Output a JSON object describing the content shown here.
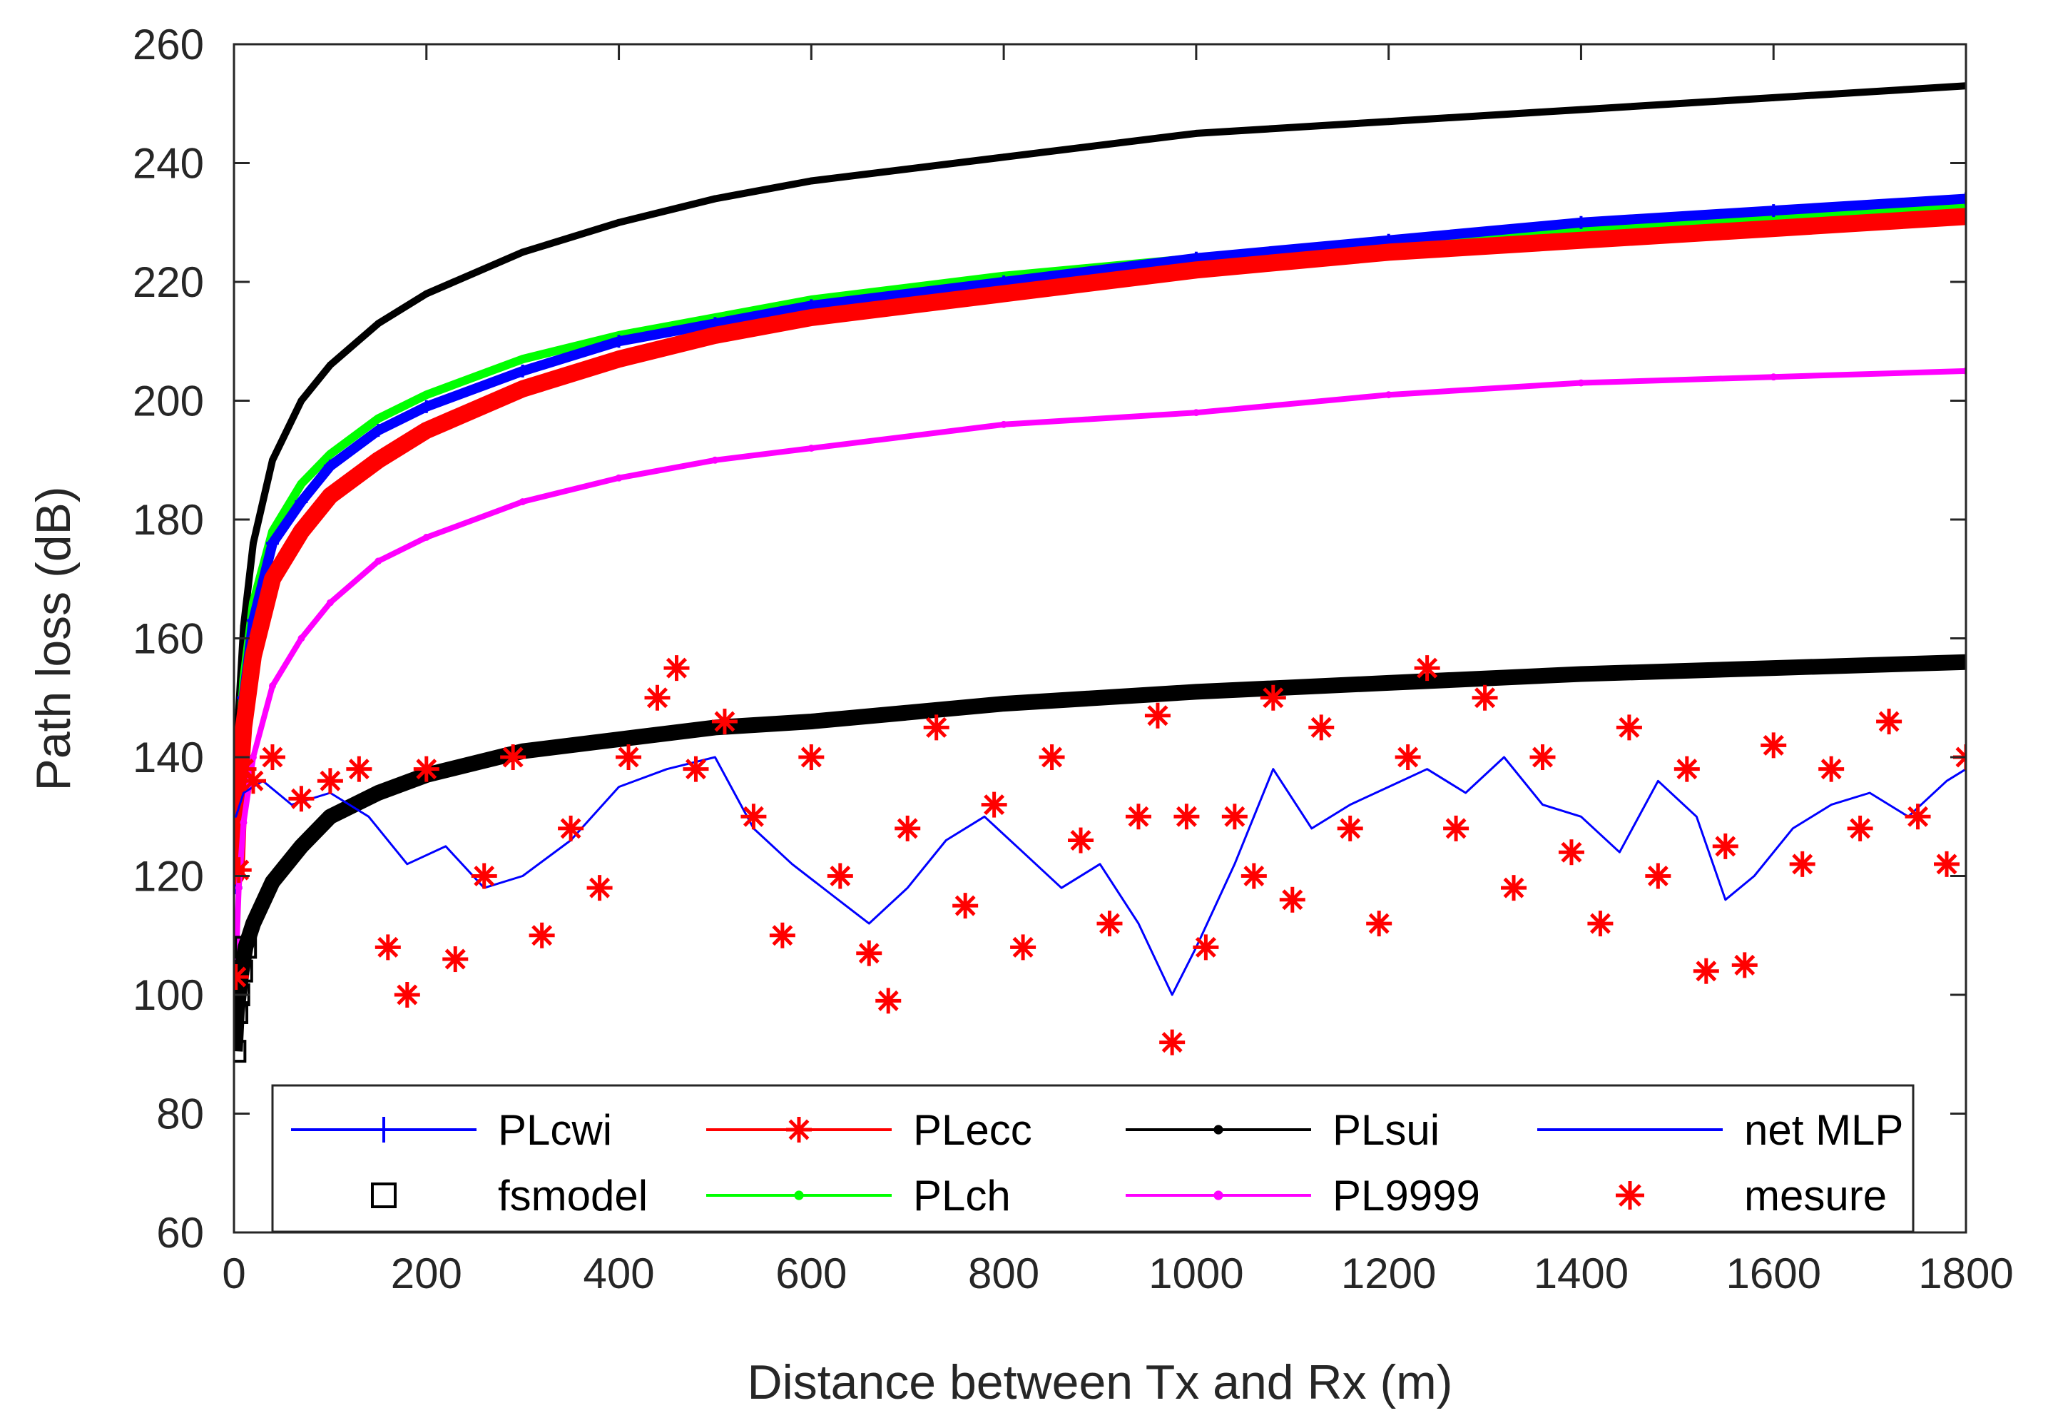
{
  "chart_data": {
    "type": "line",
    "title": "",
    "xlabel": "Distance between Tx and Rx (m)",
    "ylabel": "Path loss (dB)",
    "xlim": [
      0,
      1800
    ],
    "ylim": [
      60,
      260
    ],
    "xticks": [
      0,
      200,
      400,
      600,
      800,
      1000,
      1200,
      1400,
      1600,
      1800
    ],
    "yticks": [
      60,
      80,
      100,
      120,
      140,
      160,
      180,
      200,
      220,
      240,
      260
    ],
    "grid": false,
    "legend_position": "bottom",
    "series": [
      {
        "name": "PLcwi",
        "color": "#0000ff",
        "marker": "plus",
        "x": [
          2,
          5,
          10,
          20,
          40,
          70,
          100,
          150,
          200,
          300,
          400,
          500,
          600,
          800,
          1000,
          1200,
          1400,
          1600,
          1800
        ],
        "y": [
          118,
          135,
          150,
          163,
          176,
          183,
          189,
          195,
          199,
          205,
          210,
          213,
          216,
          220,
          224,
          227,
          230,
          232,
          234
        ]
      },
      {
        "name": "PLecc",
        "color": "#ff0000",
        "marker": "asterisk",
        "x": [
          2,
          5,
          10,
          20,
          40,
          70,
          100,
          150,
          200,
          300,
          400,
          500,
          600,
          800,
          1000,
          1200,
          1400,
          1600,
          1800
        ],
        "y": [
          120,
          133,
          145,
          157,
          170,
          178,
          184,
          190,
          195,
          202,
          207,
          211,
          214,
          218,
          222,
          225,
          227,
          229,
          231
        ]
      },
      {
        "name": "PLsui",
        "color": "#000000",
        "marker": "dot",
        "x": [
          2,
          5,
          10,
          20,
          40,
          70,
          100,
          150,
          200,
          300,
          400,
          500,
          600,
          800,
          1000,
          1200,
          1400,
          1600,
          1800
        ],
        "y": [
          130,
          148,
          162,
          176,
          190,
          200,
          206,
          213,
          218,
          225,
          230,
          234,
          237,
          241,
          245,
          247,
          249,
          251,
          253
        ]
      },
      {
        "name": "net MLP",
        "color": "#0000ff",
        "marker": "none",
        "x": [
          2,
          10,
          30,
          60,
          100,
          140,
          180,
          220,
          260,
          300,
          350,
          400,
          450,
          500,
          540,
          580,
          620,
          660,
          700,
          740,
          780,
          820,
          860,
          900,
          940,
          975,
          1000,
          1040,
          1080,
          1120,
          1160,
          1200,
          1240,
          1280,
          1320,
          1360,
          1400,
          1440,
          1480,
          1520,
          1550,
          1580,
          1620,
          1660,
          1700,
          1740,
          1780,
          1800
        ],
        "y": [
          130,
          134,
          136,
          132,
          134,
          130,
          122,
          125,
          118,
          120,
          126,
          135,
          138,
          140,
          128,
          122,
          117,
          112,
          118,
          126,
          130,
          124,
          118,
          122,
          112,
          100,
          108,
          122,
          138,
          128,
          132,
          135,
          138,
          134,
          140,
          132,
          130,
          124,
          136,
          130,
          116,
          120,
          128,
          132,
          134,
          130,
          136,
          138
        ]
      },
      {
        "name": "fsmodel",
        "color": "#000000",
        "marker": "square",
        "x": [
          1,
          3,
          5,
          8,
          12,
          20,
          40,
          70,
          100,
          150,
          200,
          300,
          400,
          500,
          600,
          800,
          1000,
          1200,
          1400,
          1600,
          1800
        ],
        "y": [
          90.5,
          97,
          100,
          104,
          108,
          112,
          119,
          125,
          130,
          134,
          137,
          141,
          143,
          145,
          146,
          149,
          151,
          152.5,
          154,
          155,
          156
        ]
      },
      {
        "name": "PLch",
        "color": "#00ff00",
        "marker": "dot",
        "x": [
          2,
          5,
          10,
          20,
          40,
          70,
          100,
          150,
          200,
          300,
          400,
          500,
          600,
          800,
          1000,
          1200,
          1400,
          1600,
          1800
        ],
        "y": [
          125,
          140,
          153,
          166,
          178,
          186,
          191,
          197,
          201,
          207,
          211,
          214,
          217,
          221,
          224,
          227,
          229,
          231,
          233
        ]
      },
      {
        "name": "PL9999",
        "color": "#ff00ff",
        "marker": "dot",
        "x": [
          2,
          5,
          10,
          20,
          40,
          70,
          100,
          150,
          200,
          300,
          400,
          500,
          600,
          800,
          1000,
          1200,
          1400,
          1600,
          1800
        ],
        "y": [
          105,
          118,
          129,
          140,
          152,
          160,
          166,
          173,
          177,
          183,
          187,
          190,
          192,
          196,
          198,
          201,
          203,
          204,
          205
        ]
      },
      {
        "name": "mesure",
        "color": "#ff0000",
        "marker": "asterisk",
        "x": [
          2,
          5,
          10,
          20,
          40,
          70,
          100,
          130,
          160,
          180,
          200,
          230,
          260,
          290,
          320,
          350,
          380,
          410,
          440,
          460,
          480,
          510,
          540,
          570,
          600,
          630,
          660,
          680,
          700,
          730,
          760,
          790,
          820,
          850,
          880,
          910,
          940,
          960,
          975,
          990,
          1010,
          1040,
          1060,
          1080,
          1100,
          1130,
          1160,
          1190,
          1220,
          1240,
          1270,
          1300,
          1330,
          1360,
          1390,
          1420,
          1450,
          1480,
          1510,
          1530,
          1550,
          1570,
          1600,
          1630,
          1660,
          1690,
          1720,
          1750,
          1780,
          1800
        ],
        "y": [
          103,
          121,
          138,
          136,
          140,
          133,
          136,
          138,
          108,
          100,
          138,
          106,
          120,
          140,
          110,
          128,
          118,
          140,
          150,
          155,
          138,
          146,
          130,
          110,
          140,
          120,
          107,
          99,
          128,
          145,
          115,
          132,
          108,
          140,
          126,
          112,
          130,
          147,
          92,
          130,
          108,
          130,
          120,
          150,
          116,
          145,
          128,
          112,
          140,
          155,
          128,
          150,
          118,
          140,
          124,
          112,
          145,
          120,
          138,
          104,
          125,
          105,
          142,
          122,
          138,
          128,
          146,
          130,
          122,
          140
        ]
      }
    ]
  }
}
